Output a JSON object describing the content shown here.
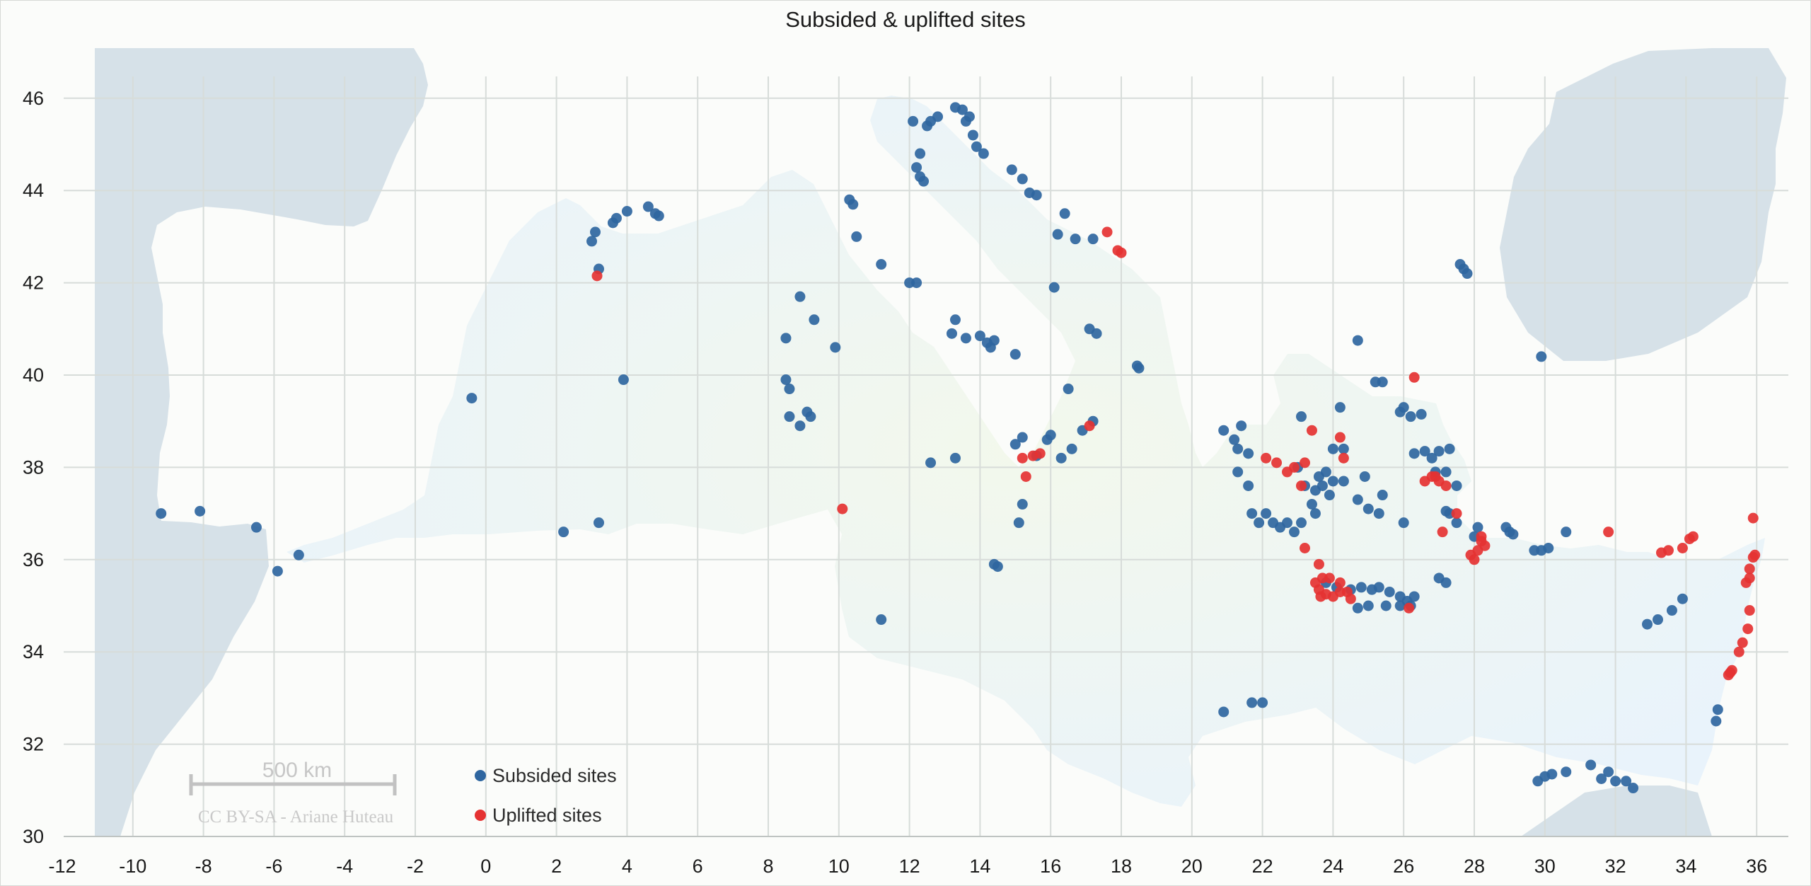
{
  "chart_data": {
    "type": "scatter",
    "title": "Subsided & uplifted sites",
    "xlabel": "",
    "ylabel": "",
    "xlim": [
      -12,
      37
    ],
    "ylim": [
      30,
      47
    ],
    "x_ticks": [
      -12,
      -10,
      -8,
      -6,
      -4,
      -2,
      0,
      2,
      4,
      6,
      8,
      10,
      12,
      14,
      16,
      18,
      20,
      22,
      24,
      26,
      28,
      30,
      32,
      34,
      36
    ],
    "y_ticks": [
      30,
      32,
      34,
      36,
      38,
      40,
      42,
      44,
      46
    ],
    "grid": true,
    "background": "map of the Mediterranean Sea",
    "legend_position": "bottom-left",
    "scale_bar_label": "500 km",
    "credit": "CC BY-SA - Ariane Huteau",
    "colors": {
      "subsided": "#2f66a0",
      "uplifted": "#e53232"
    },
    "series": [
      {
        "name": "Subsided sites",
        "color": "#2f66a0",
        "points": [
          [
            -9.2,
            37.0
          ],
          [
            -8.1,
            37.05
          ],
          [
            -6.5,
            36.7
          ],
          [
            -5.9,
            35.75
          ],
          [
            -5.3,
            36.1
          ],
          [
            -0.4,
            39.5
          ],
          [
            2.2,
            36.6
          ],
          [
            3.2,
            36.8
          ],
          [
            3.9,
            39.9
          ],
          [
            3.1,
            43.1
          ],
          [
            3.0,
            42.9
          ],
          [
            3.2,
            42.3
          ],
          [
            3.6,
            43.3
          ],
          [
            3.7,
            43.4
          ],
          [
            4.0,
            43.55
          ],
          [
            4.6,
            43.65
          ],
          [
            4.8,
            43.5
          ],
          [
            4.9,
            43.45
          ],
          [
            8.9,
            41.7
          ],
          [
            9.3,
            41.2
          ],
          [
            8.5,
            40.8
          ],
          [
            9.9,
            40.6
          ],
          [
            8.5,
            39.9
          ],
          [
            8.6,
            39.7
          ],
          [
            9.1,
            39.2
          ],
          [
            9.2,
            39.1
          ],
          [
            8.9,
            38.9
          ],
          [
            8.6,
            39.1
          ],
          [
            10.3,
            43.8
          ],
          [
            10.4,
            43.7
          ],
          [
            10.5,
            43.0
          ],
          [
            11.2,
            42.4
          ],
          [
            12.0,
            42.0
          ],
          [
            12.2,
            42.0
          ],
          [
            13.3,
            41.2
          ],
          [
            13.2,
            40.9
          ],
          [
            13.6,
            40.8
          ],
          [
            14.0,
            40.85
          ],
          [
            14.2,
            40.7
          ],
          [
            14.4,
            40.75
          ],
          [
            14.3,
            40.6
          ],
          [
            15.0,
            40.45
          ],
          [
            12.5,
            45.4
          ],
          [
            12.6,
            45.5
          ],
          [
            12.8,
            45.6
          ],
          [
            13.3,
            45.8
          ],
          [
            13.5,
            45.75
          ],
          [
            13.7,
            45.6
          ],
          [
            13.6,
            45.5
          ],
          [
            13.8,
            45.2
          ],
          [
            13.9,
            44.95
          ],
          [
            14.1,
            44.8
          ],
          [
            12.3,
            44.8
          ],
          [
            12.2,
            44.5
          ],
          [
            12.3,
            44.3
          ],
          [
            12.4,
            44.2
          ],
          [
            12.1,
            45.5
          ],
          [
            14.9,
            44.45
          ],
          [
            15.2,
            44.25
          ],
          [
            15.4,
            43.95
          ],
          [
            15.6,
            43.9
          ],
          [
            16.4,
            43.5
          ],
          [
            16.2,
            43.05
          ],
          [
            16.7,
            42.95
          ],
          [
            17.2,
            42.95
          ],
          [
            16.1,
            41.9
          ],
          [
            17.1,
            41.0
          ],
          [
            17.3,
            40.9
          ],
          [
            18.5,
            40.15
          ],
          [
            18.45,
            40.2
          ],
          [
            16.5,
            39.7
          ],
          [
            16.9,
            38.8
          ],
          [
            17.2,
            39.0
          ],
          [
            16.3,
            38.2
          ],
          [
            16.6,
            38.4
          ],
          [
            15.9,
            38.6
          ],
          [
            16.0,
            38.7
          ],
          [
            15.2,
            38.65
          ],
          [
            15.0,
            38.5
          ],
          [
            15.6,
            38.25
          ],
          [
            15.2,
            37.2
          ],
          [
            15.1,
            36.8
          ],
          [
            12.6,
            38.1
          ],
          [
            13.3,
            38.2
          ],
          [
            14.4,
            35.9
          ],
          [
            14.5,
            35.85
          ],
          [
            11.2,
            34.7
          ],
          [
            20.9,
            32.7
          ],
          [
            21.7,
            32.9
          ],
          [
            22.0,
            32.9
          ],
          [
            20.9,
            38.8
          ],
          [
            21.2,
            38.6
          ],
          [
            21.4,
            38.9
          ],
          [
            21.3,
            38.4
          ],
          [
            21.6,
            38.3
          ],
          [
            21.3,
            37.9
          ],
          [
            21.6,
            37.6
          ],
          [
            21.7,
            37.0
          ],
          [
            21.9,
            36.8
          ],
          [
            22.1,
            37.0
          ],
          [
            22.3,
            36.8
          ],
          [
            22.5,
            36.7
          ],
          [
            22.7,
            36.8
          ],
          [
            22.9,
            36.6
          ],
          [
            23.1,
            36.8
          ],
          [
            23.1,
            39.1
          ],
          [
            23.0,
            38.0
          ],
          [
            23.2,
            37.6
          ],
          [
            23.4,
            37.2
          ],
          [
            23.5,
            37.5
          ],
          [
            23.6,
            37.8
          ],
          [
            23.7,
            37.6
          ],
          [
            23.9,
            37.4
          ],
          [
            23.5,
            37.0
          ],
          [
            23.8,
            37.9
          ],
          [
            24.0,
            38.4
          ],
          [
            24.3,
            38.4
          ],
          [
            24.2,
            39.3
          ],
          [
            24.0,
            37.7
          ],
          [
            24.3,
            37.7
          ],
          [
            24.7,
            37.3
          ],
          [
            24.9,
            37.8
          ],
          [
            25.0,
            37.1
          ],
          [
            25.3,
            37.0
          ],
          [
            25.4,
            37.4
          ],
          [
            24.7,
            40.75
          ],
          [
            25.2,
            39.85
          ],
          [
            25.4,
            39.85
          ],
          [
            25.9,
            39.2
          ],
          [
            26.0,
            39.3
          ],
          [
            26.2,
            39.1
          ],
          [
            26.5,
            39.15
          ],
          [
            26.3,
            38.3
          ],
          [
            26.6,
            38.35
          ],
          [
            27.0,
            38.35
          ],
          [
            27.3,
            38.4
          ],
          [
            26.9,
            37.9
          ],
          [
            26.8,
            38.2
          ],
          [
            27.2,
            37.9
          ],
          [
            27.5,
            37.6
          ],
          [
            27.2,
            37.05
          ],
          [
            27.3,
            37.0
          ],
          [
            26.0,
            36.8
          ],
          [
            27.5,
            36.8
          ],
          [
            27.0,
            35.6
          ],
          [
            27.2,
            35.5
          ],
          [
            28.0,
            36.5
          ],
          [
            28.1,
            36.7
          ],
          [
            28.9,
            36.7
          ],
          [
            29.0,
            36.6
          ],
          [
            29.1,
            36.55
          ],
          [
            29.7,
            36.2
          ],
          [
            29.9,
            36.2
          ],
          [
            30.1,
            36.25
          ],
          [
            30.6,
            36.6
          ],
          [
            29.9,
            40.4
          ],
          [
            27.6,
            42.4
          ],
          [
            27.7,
            42.3
          ],
          [
            27.8,
            42.2
          ],
          [
            23.8,
            35.5
          ],
          [
            24.1,
            35.4
          ],
          [
            24.5,
            35.35
          ],
          [
            24.8,
            35.4
          ],
          [
            25.1,
            35.35
          ],
          [
            25.3,
            35.4
          ],
          [
            25.6,
            35.3
          ],
          [
            25.9,
            35.2
          ],
          [
            26.1,
            35.1
          ],
          [
            26.3,
            35.2
          ],
          [
            25.5,
            35.0
          ],
          [
            25.0,
            35.0
          ],
          [
            24.7,
            34.95
          ],
          [
            25.9,
            35.0
          ],
          [
            26.2,
            35.0
          ],
          [
            29.8,
            31.2
          ],
          [
            30.0,
            31.3
          ],
          [
            30.2,
            31.35
          ],
          [
            30.6,
            31.4
          ],
          [
            31.3,
            31.55
          ],
          [
            31.8,
            31.4
          ],
          [
            32.0,
            31.2
          ],
          [
            31.6,
            31.25
          ],
          [
            32.3,
            31.2
          ],
          [
            32.5,
            31.05
          ],
          [
            32.9,
            34.6
          ],
          [
            33.2,
            34.7
          ],
          [
            33.6,
            34.9
          ],
          [
            33.9,
            35.15
          ],
          [
            34.85,
            32.5
          ],
          [
            34.9,
            32.75
          ]
        ]
      },
      {
        "name": "Uplifted sites",
        "color": "#e53232",
        "points": [
          [
            3.15,
            42.15
          ],
          [
            10.1,
            37.1
          ],
          [
            17.6,
            43.1
          ],
          [
            17.9,
            42.7
          ],
          [
            18.0,
            42.65
          ],
          [
            17.1,
            38.9
          ],
          [
            15.2,
            38.2
          ],
          [
            15.5,
            38.25
          ],
          [
            15.7,
            38.3
          ],
          [
            15.3,
            37.8
          ],
          [
            22.1,
            38.2
          ],
          [
            22.4,
            38.1
          ],
          [
            22.9,
            38.0
          ],
          [
            23.2,
            38.1
          ],
          [
            23.4,
            38.8
          ],
          [
            24.2,
            38.65
          ],
          [
            24.3,
            38.2
          ],
          [
            22.7,
            37.9
          ],
          [
            23.1,
            37.6
          ],
          [
            23.2,
            36.25
          ],
          [
            23.6,
            35.9
          ],
          [
            26.3,
            39.95
          ],
          [
            26.6,
            37.7
          ],
          [
            26.8,
            37.8
          ],
          [
            27.0,
            37.7
          ],
          [
            27.2,
            37.6
          ],
          [
            26.9,
            37.8
          ],
          [
            27.5,
            37.0
          ],
          [
            27.1,
            36.6
          ],
          [
            27.9,
            36.1
          ],
          [
            28.1,
            36.2
          ],
          [
            28.2,
            36.4
          ],
          [
            28.3,
            36.3
          ],
          [
            28.0,
            36.0
          ],
          [
            28.2,
            36.5
          ],
          [
            23.5,
            35.5
          ],
          [
            23.6,
            35.35
          ],
          [
            23.7,
            35.6
          ],
          [
            23.9,
            35.6
          ],
          [
            23.8,
            35.25
          ],
          [
            24.0,
            35.2
          ],
          [
            24.2,
            35.3
          ],
          [
            24.4,
            35.3
          ],
          [
            24.5,
            35.15
          ],
          [
            24.2,
            35.5
          ],
          [
            23.65,
            35.2
          ],
          [
            26.15,
            34.95
          ],
          [
            31.8,
            36.6
          ],
          [
            33.3,
            36.15
          ],
          [
            33.5,
            36.2
          ],
          [
            33.9,
            36.25
          ],
          [
            34.1,
            36.45
          ],
          [
            34.2,
            36.5
          ],
          [
            35.9,
            36.9
          ],
          [
            35.95,
            36.1
          ],
          [
            35.9,
            36.05
          ],
          [
            35.8,
            35.8
          ],
          [
            35.8,
            35.6
          ],
          [
            35.7,
            35.5
          ],
          [
            35.8,
            34.9
          ],
          [
            35.75,
            34.5
          ],
          [
            35.6,
            34.2
          ],
          [
            35.5,
            34.0
          ],
          [
            35.3,
            33.6
          ],
          [
            35.2,
            33.5
          ],
          [
            35.25,
            33.55
          ]
        ]
      }
    ]
  }
}
